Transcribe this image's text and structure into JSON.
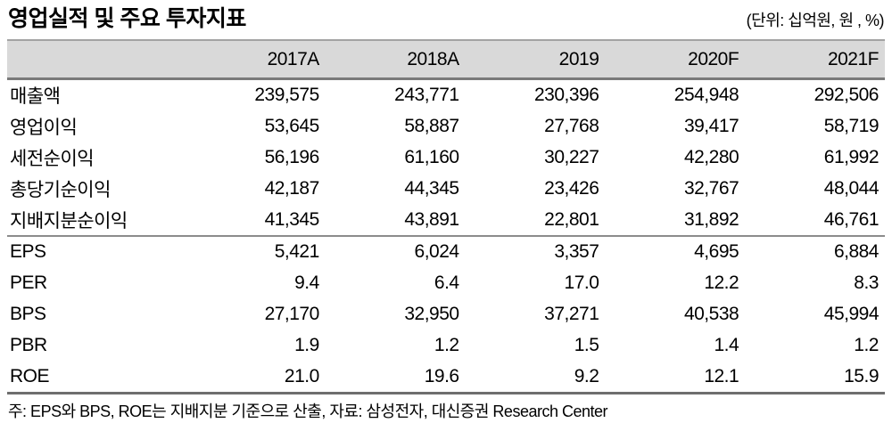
{
  "title": "영업실적 및 주요 투자지표",
  "unit_note": "(단위: 십억원, 원 , %)",
  "table": {
    "columns": [
      "",
      "2017A",
      "2018A",
      "2019",
      "2020F",
      "2021F"
    ],
    "rows": [
      {
        "label": "매출액",
        "values": [
          "239,575",
          "243,771",
          "230,396",
          "254,948",
          "292,506"
        ]
      },
      {
        "label": "영업이익",
        "values": [
          "53,645",
          "58,887",
          "27,768",
          "39,417",
          "58,719"
        ]
      },
      {
        "label": "세전순이익",
        "values": [
          "56,196",
          "61,160",
          "30,227",
          "42,280",
          "61,992"
        ]
      },
      {
        "label": "총당기순이익",
        "values": [
          "42,187",
          "44,345",
          "23,426",
          "32,767",
          "48,044"
        ]
      },
      {
        "label": "지배지분순이익",
        "values": [
          "41,345",
          "43,891",
          "22,801",
          "31,892",
          "46,761"
        ]
      },
      {
        "label": "EPS",
        "values": [
          "5,421",
          "6,024",
          "3,357",
          "4,695",
          "6,884"
        ]
      },
      {
        "label": "PER",
        "values": [
          "9.4",
          "6.4",
          "17.0",
          "12.2",
          "8.3"
        ]
      },
      {
        "label": "BPS",
        "values": [
          "27,170",
          "32,950",
          "37,271",
          "40,538",
          "45,994"
        ]
      },
      {
        "label": "PBR",
        "values": [
          "1.9",
          "1.2",
          "1.5",
          "1.4",
          "1.2"
        ]
      },
      {
        "label": "ROE",
        "values": [
          "21.0",
          "19.6",
          "9.2",
          "12.1",
          "15.9"
        ]
      }
    ],
    "section_break_before_row_index": 5
  },
  "footnote": "주: EPS와 BPS, ROE는 지배지분 기준으로 산출, 자료: 삼성전자, 대신증권 Research Center",
  "colors": {
    "header_background": "#d9d9d9",
    "header_top_border": "#a3a3a3",
    "header_bottom_border": "#7a7a7a",
    "section_divider": "#8c8c8c",
    "table_bottom_border": "#6e6e6e",
    "text": "#000000"
  }
}
